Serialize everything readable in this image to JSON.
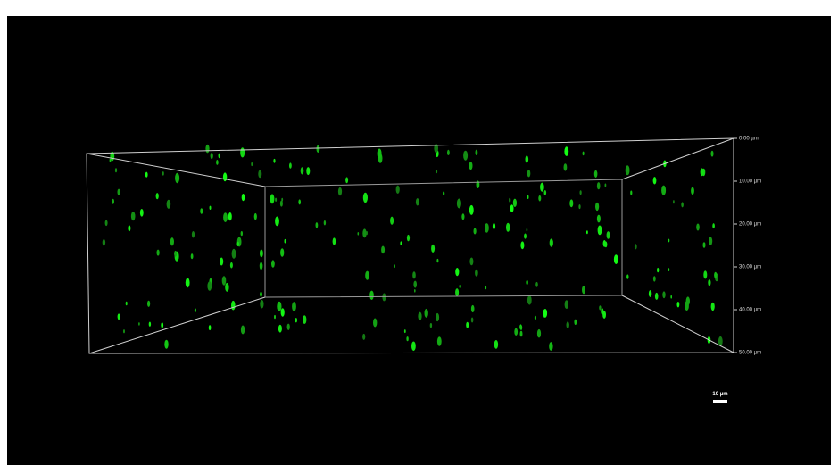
{
  "depth_axis": {
    "labels": [
      "0.00 µm",
      "10.00 µm",
      "20.00 µm",
      "30.00 µm",
      "40.00 µm",
      "50.00 µm"
    ]
  },
  "scale_bar": {
    "label": "10 µm"
  }
}
